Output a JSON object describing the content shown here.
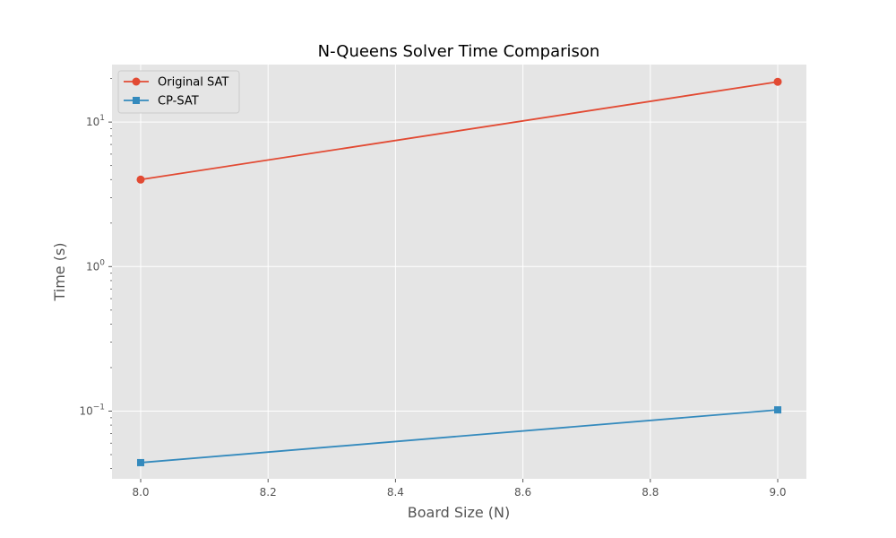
{
  "chart_data": {
    "type": "line",
    "title": "N-Queens Solver Time Comparison",
    "xlabel": "Board Size (N)",
    "ylabel": "Time (s)",
    "x": [
      8,
      9
    ],
    "xlim": [
      7.955,
      9.045
    ],
    "ylim": [
      0.034,
      25
    ],
    "yscale": "log",
    "x_ticks": [
      "8.0",
      "8.2",
      "8.4",
      "8.6",
      "8.8",
      "9.0"
    ],
    "y_ticks": [
      {
        "base": "10",
        "exp": "−1"
      },
      {
        "base": "10",
        "exp": "0"
      },
      {
        "base": "10",
        "exp": "1"
      }
    ],
    "grid": true,
    "legend_position": "top-left",
    "series": [
      {
        "name": "Original SAT",
        "values": [
          4.0,
          19.0
        ],
        "color": "#E24A33",
        "marker": "circle"
      },
      {
        "name": "CP-SAT",
        "values": [
          0.044,
          0.102
        ],
        "color": "#348ABD",
        "marker": "square"
      }
    ],
    "background_color": "#E5E5E5",
    "grid_color": "#FFFFFF"
  }
}
